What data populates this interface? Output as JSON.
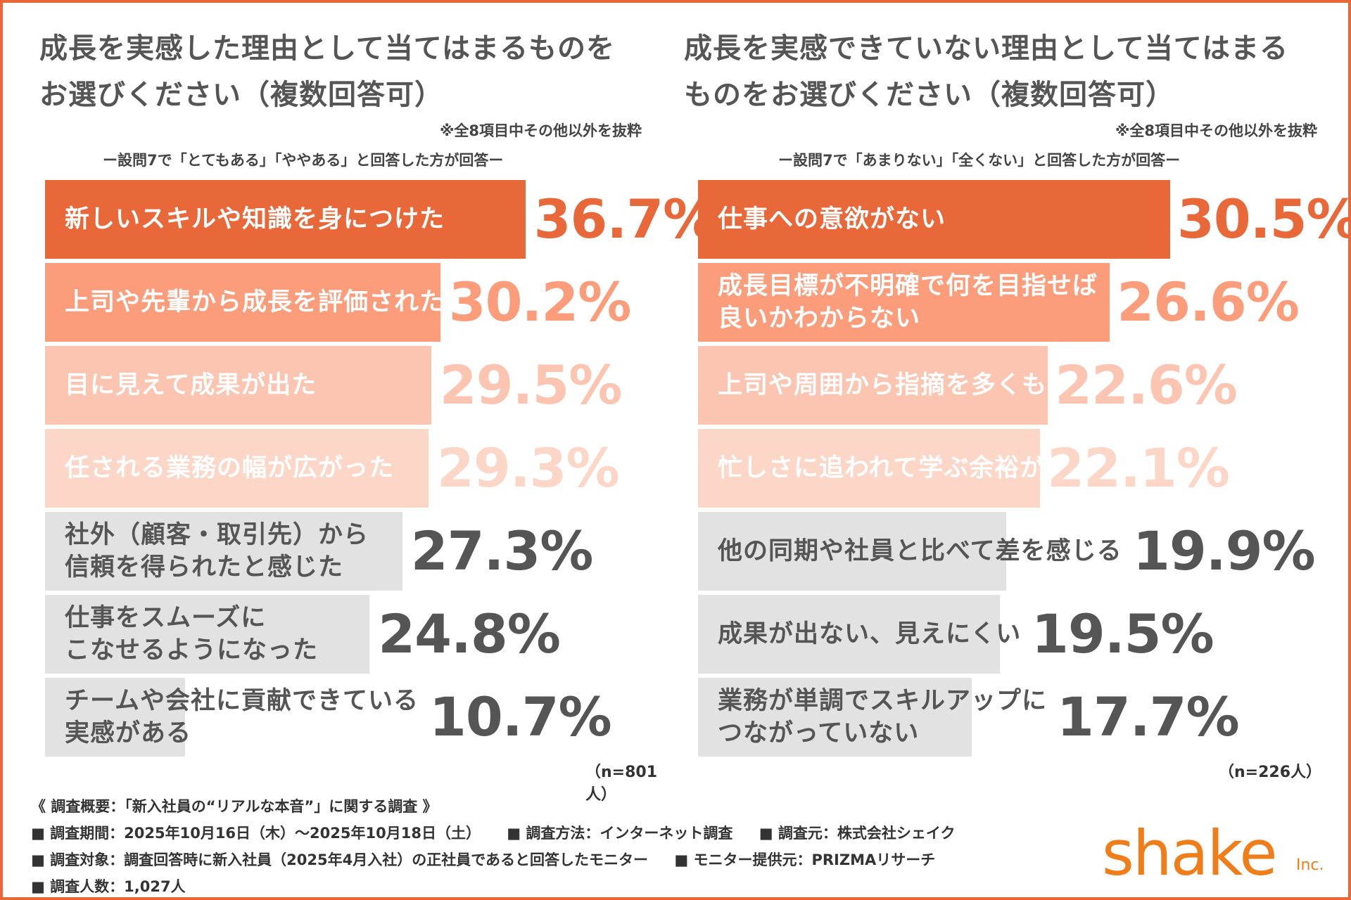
{
  "colors": {
    "accent": "#e8683a",
    "rank_colors": [
      "#e8683a",
      "#fb9d7b",
      "#fcc5b1",
      "#fcd6c7",
      "#e2e2e2",
      "#e2e2e2",
      "#e2e2e2"
    ],
    "label_colors": [
      "#ffffff",
      "#ffffff",
      "#ffffff",
      "#ffffff",
      "#555555",
      "#555555",
      "#555555"
    ],
    "value_colors": [
      "#e8683a",
      "#fb9d7b",
      "#fcc5b1",
      "#fcd6c7",
      "#555555",
      "#555555",
      "#555555"
    ]
  },
  "chart_data": [
    {
      "type": "bar",
      "orientation": "horizontal",
      "title": "成長を実感した理由として当てはまるものを\nお選びください（複数回答可）",
      "note": "※全8項目中その他以外を抜粋",
      "subtitle": "ー設問7で「とてもある」「ややある」と回答した方が回答ー",
      "sample": "（n=801人）",
      "unit": "%",
      "categories": [
        "新しいスキルや知識を身につけた",
        "上司や先輩から成長を評価された",
        "目に見えて成果が出た",
        "任される業務の幅が広がった",
        "社外（顧客・取引先）から\n信頼を得られたと感じた",
        "仕事をスムーズに\nこなせるようになった",
        "チームや会社に貢献できている\n実感がある"
      ],
      "values": [
        36.7,
        30.2,
        29.5,
        29.3,
        27.3,
        24.8,
        10.7
      ],
      "value_labels": [
        "36.7%",
        "30.2%",
        "29.5%",
        "29.3%",
        "27.3%",
        "24.8%",
        "10.7%"
      ]
    },
    {
      "type": "bar",
      "orientation": "horizontal",
      "title": "成長を実感できていない理由として当てはまる\nものをお選びください（複数回答可）",
      "note": "※全8項目中その他以外を抜粋",
      "subtitle": "ー設問7で「あまりない」「全くない」と回答した方が回答ー",
      "sample": "（n=226人）",
      "unit": "%",
      "categories": [
        "仕事への意欲がない",
        "成長目標が不明確で何を目指せば\n良いかわからない",
        "上司や周囲から指摘を多くもらう",
        "忙しさに追われて学ぶ余裕がない",
        "他の同期や社員と比べて差を感じる",
        "成果が出ない、見えにくい",
        "業務が単調でスキルアップに\nつながっていない"
      ],
      "values": [
        30.5,
        26.6,
        22.6,
        22.1,
        19.9,
        19.5,
        17.7
      ],
      "value_labels": [
        "30.5%",
        "26.6%",
        "22.6%",
        "22.1%",
        "19.9%",
        "19.5%",
        "17.7%"
      ]
    }
  ],
  "footer": {
    "survey_name": "《 調査概要：「新入社員の“リアルな本音”」に関する調査 》",
    "period": "■ 調査期間：2025年10月16日（木）～2025年10月18日（土）",
    "method": "■ 調査方法：インターネット調査",
    "organizer": "■ 調査元：株式会社シェイク",
    "target": "■ 調査対象：調査回答時に新入社員（2025年4月入社）の正社員であると回答したモニター",
    "provider": "■ モニター提供元：PRIZMAリサーチ",
    "respondents": "■ 調査人数：1,027人"
  },
  "logo": {
    "text": "shake",
    "suffix": "Inc."
  }
}
